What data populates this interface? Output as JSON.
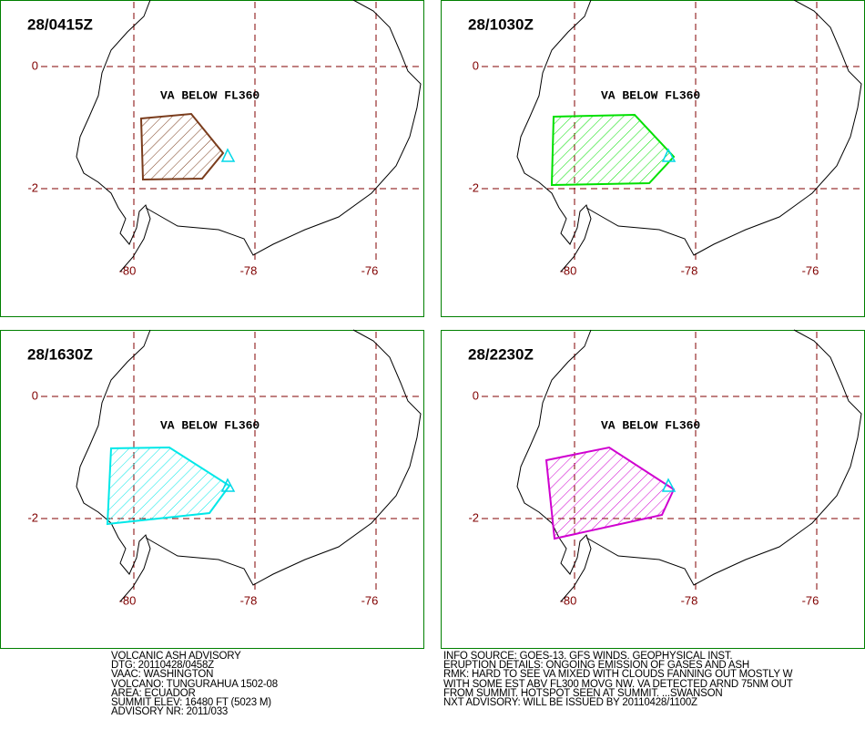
{
  "panels": [
    {
      "time": "28/0415Z",
      "label": "VA BELOW FL360"
    },
    {
      "time": "28/1030Z",
      "label": "VA BELOW FL360"
    },
    {
      "time": "28/1630Z",
      "label": "VA BELOW FL360"
    },
    {
      "time": "28/2230Z",
      "label": "VA BELOW FL360"
    }
  ],
  "grid_labels": {
    "lat": [
      "0",
      "-2"
    ],
    "lon": [
      "-80",
      "-78",
      "-76"
    ]
  },
  "advisory_left": [
    "VOLCANIC ASH ADVISORY",
    "DTG: 20110428/0458Z",
    "VAAC: WASHINGTON",
    "VOLCANO: TUNGURAHUA 1502-08",
    "AREA: ECUADOR",
    "SUMMIT ELEV: 16480 FT (5023 M)",
    "ADVISORY NR: 2011/033"
  ],
  "advisory_right": [
    "INFO SOURCE: GOES-13. GFS WINDS. GEOPHYSICAL INST.",
    "ERUPTION DETAILS: ONGOING EMISSION OF GASES AND ASH",
    "RMK: HARD TO SEE VA MIXED WITH CLOUDS FANNING OUT MOSTLY W",
    "WITH SOME EST ABV FL300 MOVG NW. VA DETECTED ARND 75NM OUT",
    "FROM SUMMIT. HOTSPOT SEEN AT SUMMIT. ...SWANSON",
    "NXT ADVISORY: WILL BE ISSUED BY 20110428/1100Z"
  ]
}
